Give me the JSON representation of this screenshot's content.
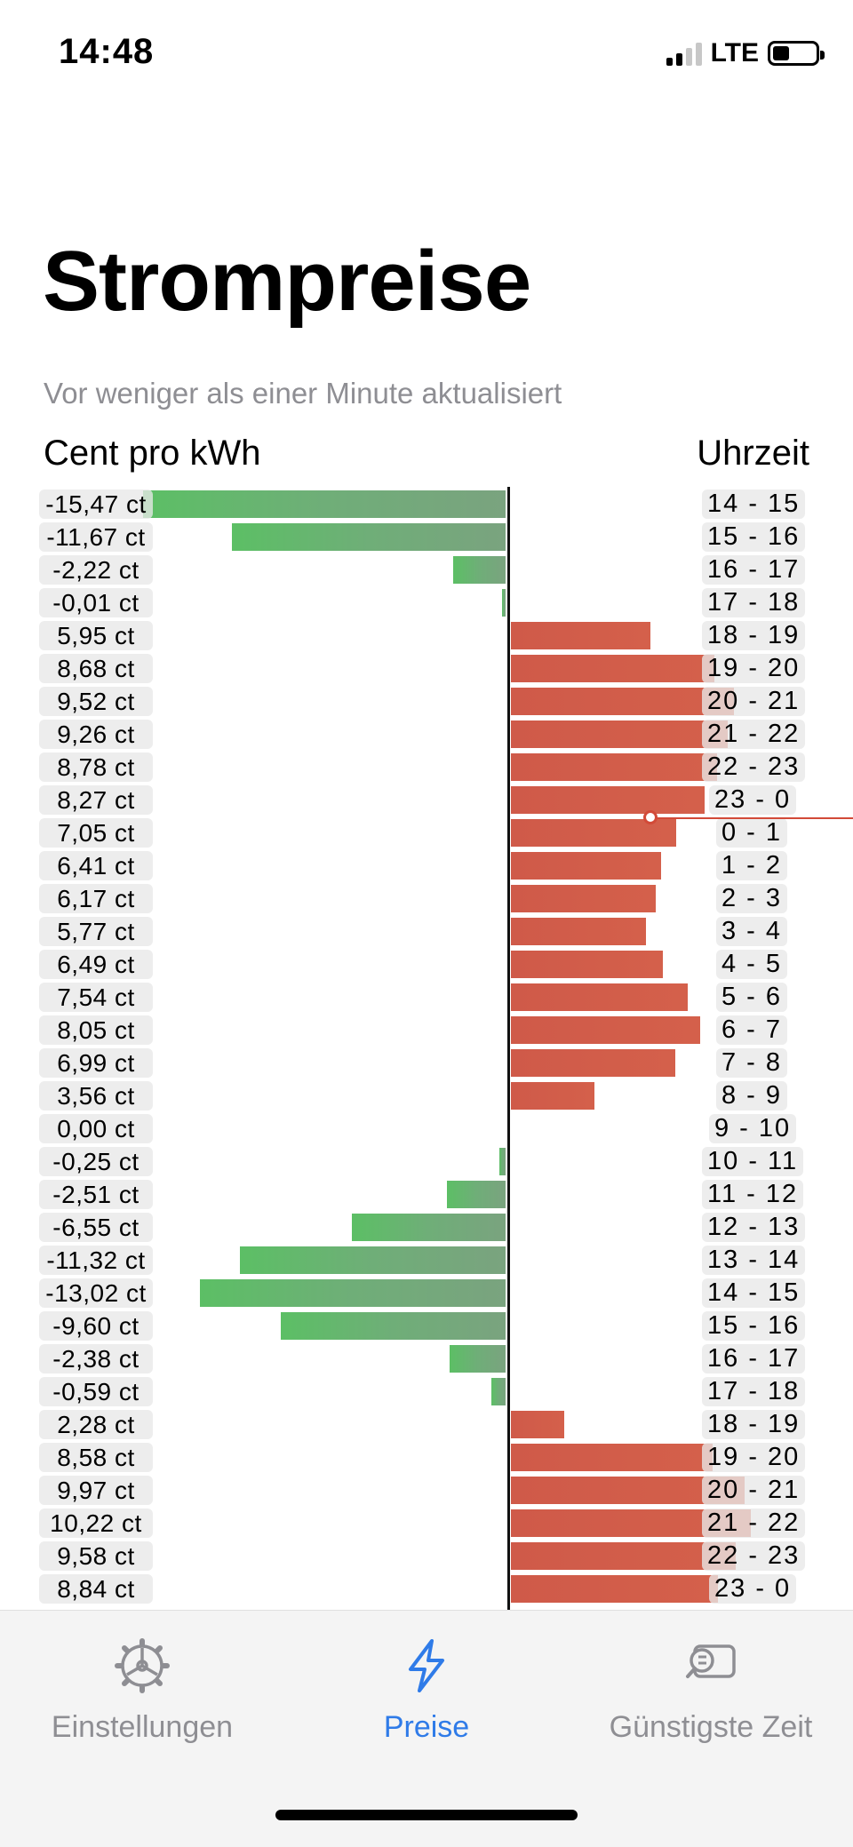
{
  "status": {
    "time": "14:48",
    "network": "LTE"
  },
  "page": {
    "title": "Strompreise",
    "subtitle": "Vor weniger als einer Minute aktualisiert",
    "left_header": "Cent pro kWh",
    "right_header": "Uhrzeit"
  },
  "chart_data": {
    "type": "bar",
    "orientation": "horizontal",
    "unit": "ct",
    "series": [
      {
        "values": [
          -15.47,
          -11.67,
          -2.22,
          -0.01,
          5.95,
          8.68,
          9.52,
          9.26,
          8.78,
          8.27,
          7.05,
          6.41,
          6.17,
          5.77,
          6.49,
          7.54,
          8.05,
          6.99,
          3.56,
          0.0,
          -0.25,
          -2.51,
          -6.55,
          -11.32,
          -13.02,
          -9.6,
          -2.38,
          -0.59,
          2.28,
          8.58,
          9.97,
          10.22,
          9.58,
          8.84
        ]
      }
    ],
    "rows": [
      {
        "price": "-15,47 ct",
        "time": "14  -  15"
      },
      {
        "price": "-11,67 ct",
        "time": "15  -  16"
      },
      {
        "price": "-2,22 ct",
        "time": "16  -  17"
      },
      {
        "price": "-0,01 ct",
        "time": "17  -  18"
      },
      {
        "price": "5,95 ct",
        "time": "18  -  19"
      },
      {
        "price": "8,68 ct",
        "time": "19  -  20"
      },
      {
        "price": "9,52 ct",
        "time": "20  -  21"
      },
      {
        "price": "9,26 ct",
        "time": "21  -  22"
      },
      {
        "price": "8,78 ct",
        "time": "22  -  23"
      },
      {
        "price": "8,27 ct",
        "time": "23  -  0"
      },
      {
        "price": "7,05 ct",
        "time": "0  -  1"
      },
      {
        "price": "6,41 ct",
        "time": "1  -  2"
      },
      {
        "price": "6,17 ct",
        "time": "2  -  3"
      },
      {
        "price": "5,77 ct",
        "time": "3  -  4"
      },
      {
        "price": "6,49 ct",
        "time": "4  -  5"
      },
      {
        "price": "7,54 ct",
        "time": "5  -  6"
      },
      {
        "price": "8,05 ct",
        "time": "6  -  7"
      },
      {
        "price": "6,99 ct",
        "time": "7  -  8"
      },
      {
        "price": "3,56 ct",
        "time": "8  -  9"
      },
      {
        "price": "0,00 ct",
        "time": "9  -  10"
      },
      {
        "price": "-0,25 ct",
        "time": "10  -  11"
      },
      {
        "price": "-2,51 ct",
        "time": "11  -  12"
      },
      {
        "price": "-6,55 ct",
        "time": "12  -  13"
      },
      {
        "price": "-11,32 ct",
        "time": "13  -  14"
      },
      {
        "price": "-13,02 ct",
        "time": "14  -  15"
      },
      {
        "price": "-9,60 ct",
        "time": "15  -  16"
      },
      {
        "price": "-2,38 ct",
        "time": "16  -  17"
      },
      {
        "price": "-0,59 ct",
        "time": "17  -  18"
      },
      {
        "price": "2,28 ct",
        "time": "18  -  19"
      },
      {
        "price": "8,58 ct",
        "time": "19  -  20"
      },
      {
        "price": "9,97 ct",
        "time": "20  -  21"
      },
      {
        "price": "10,22 ct",
        "time": "21  -  22"
      },
      {
        "price": "9,58 ct",
        "time": "22  -  23"
      },
      {
        "price": "8,84 ct",
        "time": "23  -  0"
      }
    ],
    "current_hour_index": 10,
    "colors": {
      "negative": "#62b56b",
      "positive": "#d05a48",
      "current_marker": "#d24a38"
    }
  },
  "tabs": [
    {
      "label": "Einstellungen",
      "icon": "gear-icon",
      "active": false
    },
    {
      "label": "Preise",
      "icon": "lightning-bolt-icon",
      "active": true
    },
    {
      "label": "Günstigste Zeit",
      "icon": "search-chat-icon",
      "active": false
    }
  ],
  "colors": {
    "accent": "#2f7be8",
    "inactive": "#8e8e93"
  }
}
